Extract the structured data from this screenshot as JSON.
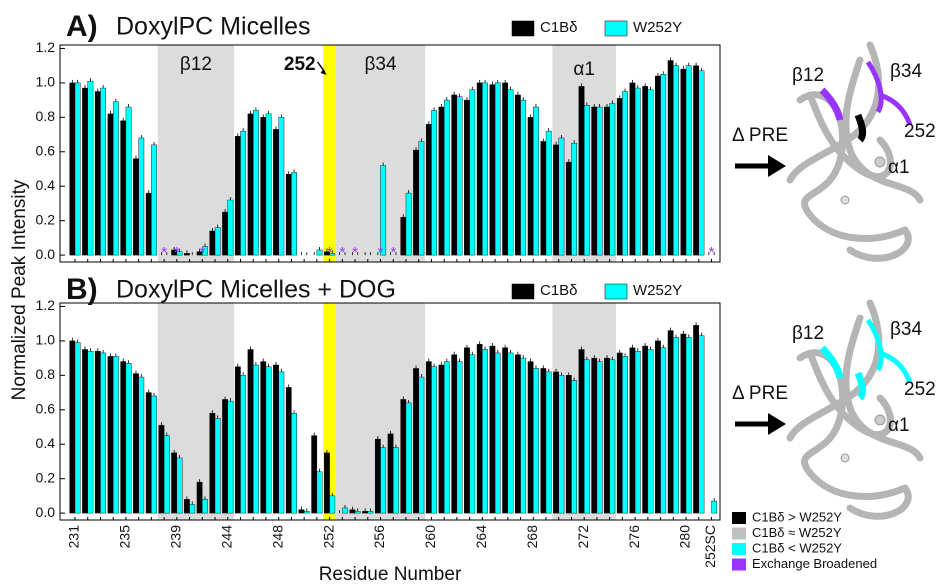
{
  "chart_data": [
    {
      "type": "bar",
      "panel": "A)",
      "title": "DoxylPC Micelles",
      "ylabel": "Normalized Peak Intensity",
      "ylim": [
        -0.04,
        1.22
      ],
      "yticks": [
        {
          "value": 0,
          "label": "0.0"
        },
        0.2,
        0.4,
        0.6,
        0.8,
        {
          "value": 1,
          "label": "1.0"
        },
        1.2
      ],
      "series": [
        {
          "name": "C1Bδ",
          "color": "#000000",
          "values": [
            1.0,
            0.97,
            0.95,
            0.82,
            0.78,
            0.56,
            0.36,
            0,
            0.03,
            0.01,
            0.02,
            0.14,
            0.25,
            0.69,
            0.82,
            0.8,
            0.73,
            0.47,
            0,
            0,
            0.02,
            0,
            0,
            0,
            0,
            0,
            0.22,
            0.61,
            0.76,
            0.86,
            0.93,
            0.9,
            1.0,
            0.99,
            1.0,
            0.93,
            0.8,
            0.66,
            0.64,
            0.54,
            0.98,
            0.86,
            0.86,
            0.91,
            1.0,
            0.98,
            1.04,
            1.13,
            1.08,
            1.1,
            0
          ]
        },
        {
          "name": "W252Y",
          "color": "#00ffff",
          "values": [
            1.0,
            1.01,
            0.97,
            0.89,
            0.86,
            0.68,
            0.64,
            0,
            0.02,
            0,
            0.05,
            0.16,
            0.32,
            0.72,
            0.84,
            0.82,
            0.8,
            0.48,
            0,
            0.03,
            0.01,
            0,
            0,
            0,
            0.52,
            0,
            0.36,
            0.66,
            0.84,
            0.9,
            0.92,
            0.96,
            1.0,
            1.0,
            0.96,
            0.9,
            0.86,
            0.72,
            0.68,
            0.65,
            0.87,
            0.86,
            0.88,
            0.95,
            0.97,
            0.96,
            1.05,
            1.1,
            1.1,
            1.07,
            0
          ]
        }
      ],
      "regions": [
        {
          "label": "β12",
          "from": 7,
          "to": 12,
          "color": "#dcdcdc"
        },
        {
          "label": "252",
          "from": 20,
          "to": 20,
          "color": "#ffff00"
        },
        {
          "label": "β34",
          "from": 21,
          "to": 27,
          "color": "#dcdcdc"
        },
        {
          "label": "α1",
          "from": 38,
          "to": 42,
          "color": "#dcdcdc"
        }
      ],
      "asterisk": {
        "text": "*",
        "color": "#9933ff",
        "categories": [
          7,
          8,
          10,
          20,
          21,
          22,
          24,
          25,
          50
        ]
      },
      "arrow_label": "Δ PRE",
      "structure_labels": [
        "β12",
        "β34",
        "252",
        "α1"
      ]
    },
    {
      "type": "bar",
      "panel": "B)",
      "title": "DoxylPC Micelles + DOG",
      "xlabel": "Residue Number",
      "categories": [
        "231",
        null,
        null,
        null,
        "235",
        null,
        null,
        null,
        "239",
        null,
        null,
        null,
        "244",
        null,
        null,
        null,
        "248",
        null,
        null,
        null,
        "252",
        null,
        null,
        null,
        "256",
        null,
        null,
        null,
        "260",
        null,
        null,
        null,
        "264",
        null,
        null,
        null,
        "268",
        null,
        null,
        null,
        "272",
        null,
        null,
        null,
        "276",
        null,
        null,
        null,
        "280",
        null,
        "252SC"
      ],
      "ylim": [
        -0.04,
        1.22
      ],
      "yticks": [
        {
          "value": 0,
          "label": "0.0"
        },
        0.2,
        0.4,
        0.6,
        0.8,
        {
          "value": 1,
          "label": "1.0"
        },
        1.2
      ],
      "series": [
        {
          "name": "C1Bδ",
          "color": "#000000",
          "values": [
            1.0,
            0.95,
            0.94,
            0.91,
            0.88,
            0.81,
            0.7,
            0.51,
            0.35,
            0.08,
            0.18,
            0.58,
            0.66,
            0.85,
            0.95,
            0.88,
            0.86,
            0.73,
            0.02,
            0.45,
            0.35,
            0,
            0.02,
            0.01,
            0.43,
            0.46,
            0.66,
            0.84,
            0.88,
            0.86,
            0.92,
            0.96,
            0.98,
            0.97,
            0.96,
            0.92,
            0.88,
            0.84,
            0.82,
            0.8,
            0.95,
            0.9,
            0.9,
            0.93,
            0.96,
            0.97,
            1.0,
            1.06,
            1.04,
            1.09,
            null
          ]
        },
        {
          "name": "W252Y",
          "color": "#00ffff",
          "values": [
            0.99,
            0.94,
            0.93,
            0.91,
            0.87,
            0.79,
            0.68,
            0.45,
            0.32,
            0.05,
            0.08,
            0.55,
            0.65,
            0.8,
            0.86,
            0.85,
            0.82,
            0.58,
            0.01,
            0.24,
            0.1,
            0.03,
            0.01,
            0.01,
            0.38,
            0.38,
            0.64,
            0.79,
            0.85,
            0.88,
            0.88,
            0.92,
            0.95,
            0.93,
            0.93,
            0.9,
            0.84,
            0.82,
            0.8,
            0.77,
            0.89,
            0.88,
            0.89,
            0.91,
            0.94,
            0.95,
            0.96,
            1.02,
            1.02,
            1.03,
            0.07
          ]
        }
      ],
      "regions": [
        {
          "from": 7,
          "to": 12,
          "color": "#dcdcdc"
        },
        {
          "from": 20,
          "to": 20,
          "color": "#ffff00"
        },
        {
          "from": 21,
          "to": 27,
          "color": "#dcdcdc"
        },
        {
          "from": 38,
          "to": 42,
          "color": "#dcdcdc"
        }
      ],
      "arrow_label": "Δ PRE",
      "structure_labels": [
        "β12",
        "β34",
        "252",
        "α1"
      ]
    }
  ],
  "key": [
    {
      "label": "C1Bδ > W252Y",
      "color": "#000000"
    },
    {
      "label": "C1Bδ ≈ W252Y",
      "color": "#c0c0c0"
    },
    {
      "label": "C1Bδ < W252Y",
      "color": "#00ffff"
    },
    {
      "label": "Exchange Broadened",
      "color": "#9933ff"
    }
  ]
}
